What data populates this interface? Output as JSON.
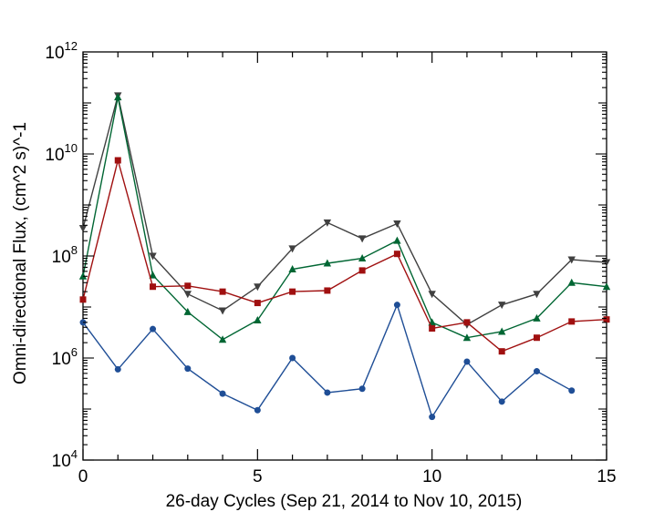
{
  "chart_data": {
    "type": "line",
    "title": "",
    "xlabel": "26-day Cycles (Sep 21, 2014 to Nov 10, 2015)",
    "ylabel": "Omni-directional Flux, (cm^2 s)^-1",
    "xlim": [
      0,
      15
    ],
    "ylim": [
      10000,
      1000000000000
    ],
    "yscale": "log",
    "grid": false,
    "x_ticks": [
      "0",
      "5",
      "10",
      "15"
    ],
    "y_ticks": [
      {
        "base": "10",
        "exp": "4",
        "value": 10000
      },
      {
        "base": "10",
        "exp": "6",
        "value": 1000000
      },
      {
        "base": "10",
        "exp": "8",
        "value": 100000000
      },
      {
        "base": "10",
        "exp": "10",
        "value": 10000000000
      },
      {
        "base": "10",
        "exp": "12",
        "value": 1000000000000
      }
    ],
    "series": [
      {
        "color": "#404040",
        "marker": "triangle-down",
        "x": [
          0,
          1,
          2,
          3,
          4,
          5,
          6,
          7,
          8,
          9,
          10,
          11,
          12,
          13,
          14,
          15
        ],
        "values": [
          350000000,
          140000000000,
          100000000,
          18000000,
          8500000,
          25000000,
          140000000,
          450000000,
          220000000,
          430000000,
          18000000,
          4500000,
          11000000,
          18000000,
          85000000,
          75000000
        ]
      },
      {
        "color": "#006633",
        "marker": "triangle-up",
        "x": [
          0,
          1,
          2,
          3,
          4,
          5,
          6,
          7,
          8,
          9,
          10,
          11,
          12,
          13,
          14,
          15
        ],
        "values": [
          40000000,
          130000000000,
          42000000,
          8000000,
          2300000,
          5500000,
          55000000,
          72000000,
          90000000,
          200000000,
          5000000,
          2500000,
          3300000,
          6000000,
          30000000,
          25000000
        ]
      },
      {
        "color": "#a01010",
        "marker": "square",
        "x": [
          0,
          1,
          2,
          3,
          4,
          5,
          6,
          7,
          8,
          9,
          10,
          11,
          12,
          13,
          14,
          15
        ],
        "values": [
          14000000,
          7500000000,
          25000000,
          26000000,
          20000000,
          12000000,
          20000000,
          21000000,
          52000000,
          110000000,
          3800000,
          5000000,
          1350000,
          2500000,
          5200000,
          5700000
        ]
      },
      {
        "color": "#1f4e96",
        "marker": "circle",
        "x": [
          0,
          1,
          2,
          3,
          4,
          5,
          6,
          7,
          8,
          9,
          10,
          11,
          12,
          13,
          14
        ],
        "values": [
          5000000,
          600000,
          3700000,
          620000,
          200000,
          95000,
          1000000,
          210000,
          250000,
          11000000,
          70000,
          850000,
          140000,
          550000,
          230000
        ]
      }
    ]
  }
}
